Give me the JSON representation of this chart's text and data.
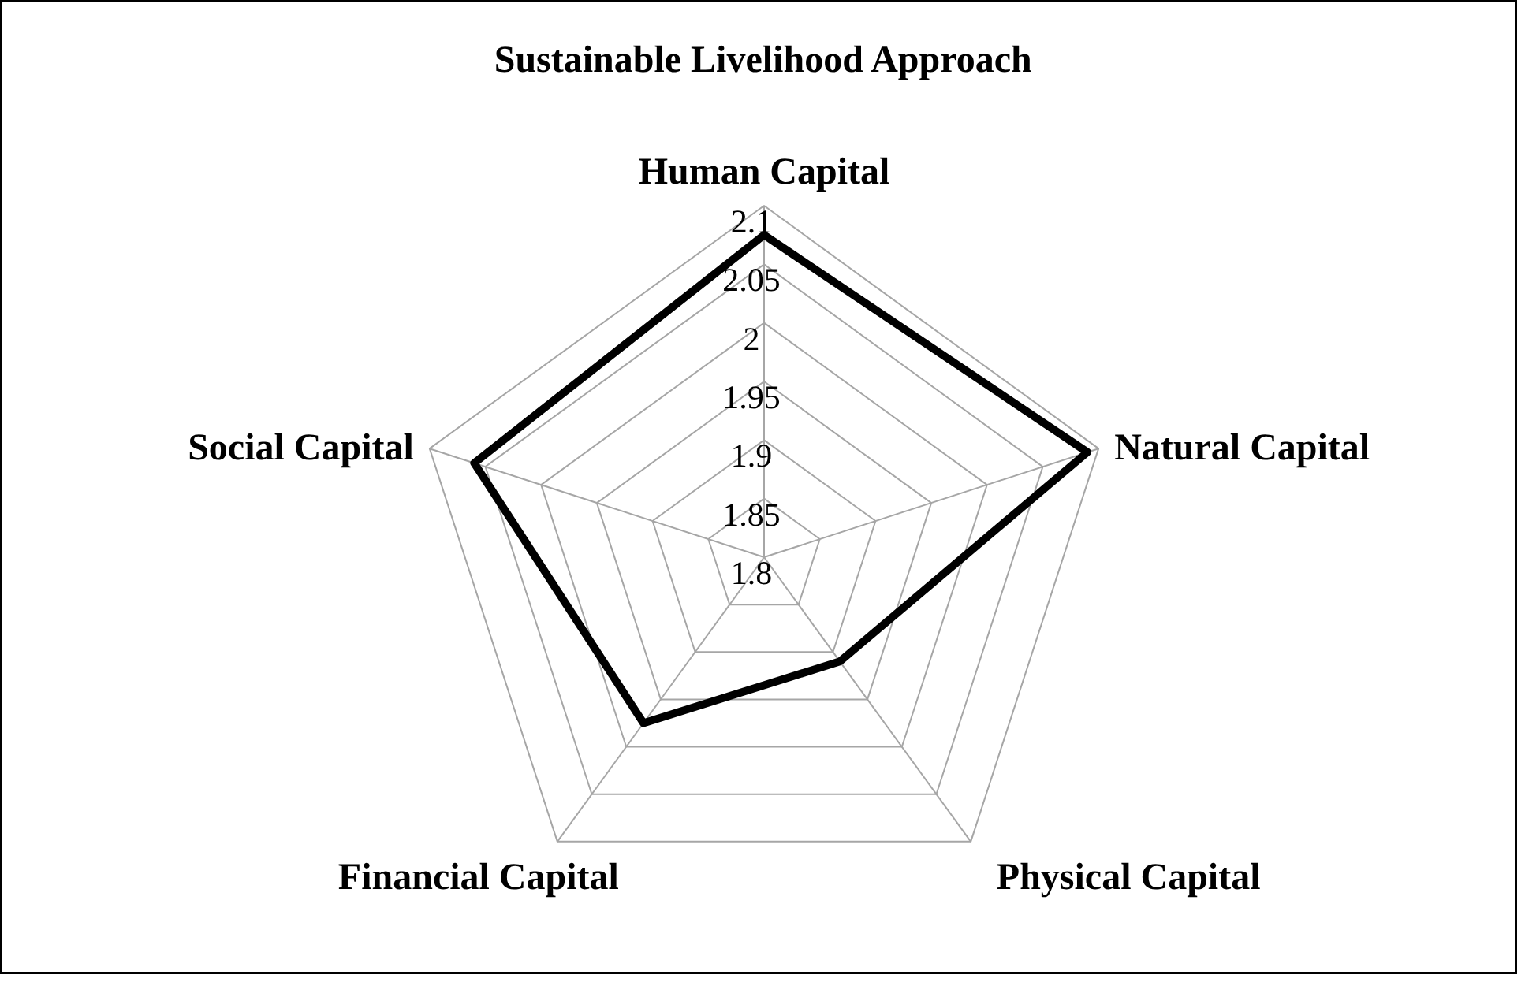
{
  "chart_data": {
    "type": "radar",
    "title": "Sustainable Livelihood Approach",
    "categories": [
      "Human Capital",
      "Natural Capital",
      "Physical Capital",
      "Financial Capital",
      "Social Capital"
    ],
    "series": [
      {
        "color": "#000000",
        "values": [
          2.075,
          2.09,
          1.91,
          1.975,
          2.06
        ]
      }
    ],
    "ylim": [
      1.8,
      2.1
    ],
    "yticks": [
      1.8,
      1.85,
      1.9,
      1.95,
      2,
      2.05,
      2.1
    ],
    "grid": true
  }
}
